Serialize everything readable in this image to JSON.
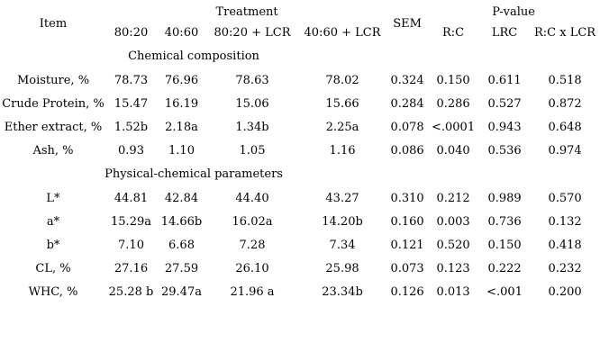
{
  "page": {
    "background_color": "#ffffff",
    "text_color": "#000000"
  },
  "table": {
    "header": {
      "item": "Item",
      "treatment": "Treatment",
      "sem": "SEM",
      "p_value": "P-value",
      "treatment_levels": [
        "80:20",
        "40:60",
        "80:20 + LCR",
        "40:60 + LCR"
      ],
      "p_value_columns": [
        "R:C",
        "LRC",
        "R:C x LCR"
      ]
    },
    "sections": [
      {
        "title": "Chemical composition",
        "rows": [
          {
            "item": "Moisture, %",
            "values": [
              "78.73",
              "76.96",
              "78.63",
              "78.02",
              "0.324",
              "0.150",
              "0.611",
              "0.518"
            ]
          },
          {
            "item": "Crude Protein, %",
            "values": [
              "15.47",
              "16.19",
              "15.06",
              "15.66",
              "0.284",
              "0.286",
              "0.527",
              "0.872"
            ]
          },
          {
            "item": "Ether extract, %",
            "values": [
              "1.52b",
              "2.18a",
              "1.34b",
              "2.25a",
              "0.078",
              "<.0001",
              "0.943",
              "0.648"
            ]
          },
          {
            "item": "Ash, %",
            "values": [
              "0.93",
              "1.10",
              "1.05",
              "1.16",
              "0.086",
              "0.040",
              "0.536",
              "0.974"
            ]
          }
        ]
      },
      {
        "title": "Physical-chemical parameters",
        "rows": [
          {
            "item": "L*",
            "values": [
              "44.81",
              "42.84",
              "44.40",
              "43.27",
              "0.310",
              "0.212",
              "0.989",
              "0.570"
            ]
          },
          {
            "item": "a*",
            "values": [
              "15.29a",
              "14.66b",
              "16.02a",
              "14.20b",
              "0.160",
              "0.003",
              "0.736",
              "0.132"
            ]
          },
          {
            "item": "b*",
            "values": [
              "7.10",
              "6.68",
              "7.28",
              "7.34",
              "0.121",
              "0.520",
              "0.150",
              "0.418"
            ]
          },
          {
            "item": "CL, %",
            "values": [
              "27.16",
              "27.59",
              "26.10",
              "25.98",
              "0.073",
              "0.123",
              "0.222",
              "0.232"
            ]
          },
          {
            "item": "WHC, %",
            "values": [
              "25.28 b",
              "29.47a",
              "21.96 a",
              "23.34b",
              "0.126",
              "0.013",
              "<.001",
              "0.200"
            ]
          }
        ]
      }
    ]
  }
}
